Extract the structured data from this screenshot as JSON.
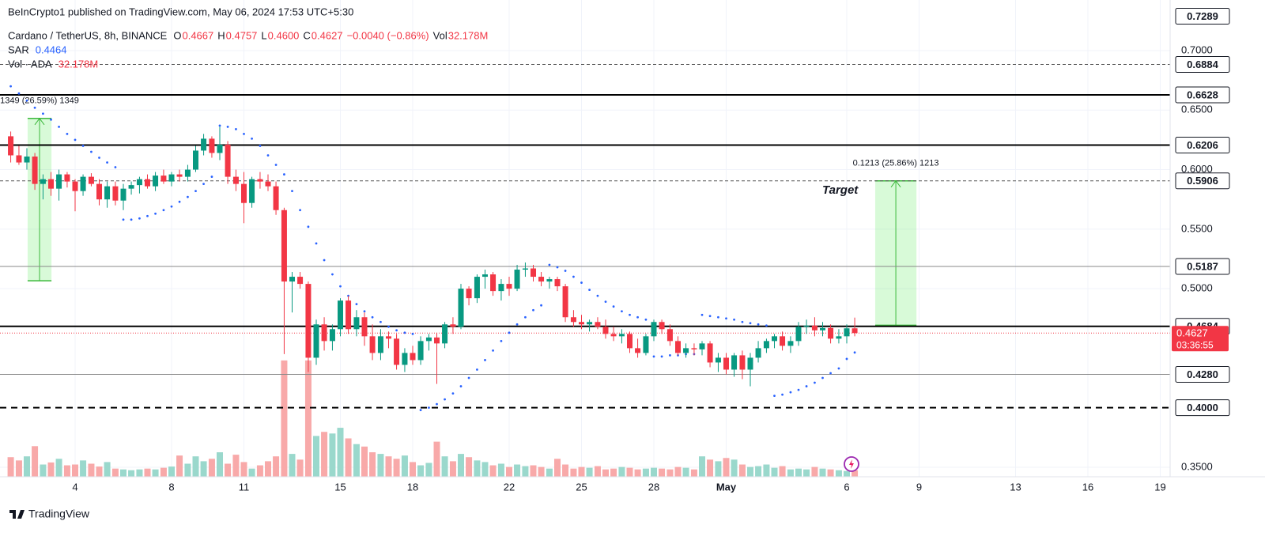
{
  "chart_data": {
    "type": "candlestick",
    "header": "BeInCrypto1 published on TradingView.com, May 06, 2024 17:53 UTC+5:30",
    "legend": {
      "symbol": "Cardano / TetherUS, 8h, BINANCE",
      "fields": [
        {
          "key": "O",
          "value": "0.4667"
        },
        {
          "key": "H",
          "value": "0.4757"
        },
        {
          "key": "L",
          "value": "0.4600"
        },
        {
          "key": "C",
          "value": "0.4627"
        }
      ],
      "change": "−0.0040 (−0.86%)",
      "vol_key": "Vol",
      "vol": "32.178M",
      "sar_key": "SAR",
      "sar": "0.4464",
      "volume_key": "Vol · ADA",
      "volume": "32.178M"
    },
    "footer": "TradingView",
    "up_color": "#089981",
    "down_color": "#f23645",
    "sar_color": "#2962ff",
    "xlim": [
      0.885,
      49.41
    ],
    "ylim": [
      0.342,
      0.7425
    ],
    "vlim": [
      0,
      620
    ],
    "grid": true,
    "xticks": [
      4,
      8,
      11,
      15,
      18,
      22,
      25,
      28,
      {
        "value": 31,
        "label": "May"
      },
      {
        "value": 36,
        "label": "6"
      },
      {
        "value": 39,
        "label": "9"
      },
      {
        "value": 43,
        "label": "13"
      },
      {
        "value": 46,
        "label": "16"
      },
      {
        "value": 49,
        "label": "19"
      }
    ],
    "yticks": [
      {
        "value": 0.35,
        "label": "0.3500"
      },
      {
        "value": 0.5,
        "label": "0.5000"
      },
      {
        "value": 0.55,
        "label": "0.5500"
      },
      {
        "value": 0.6,
        "label": "0.6000"
      },
      {
        "value": 0.65,
        "label": "0.6500"
      },
      {
        "value": 0.7,
        "label": "0.7000"
      }
    ],
    "levels": [
      {
        "value": 0.7289,
        "label": "0.7289",
        "line": "none",
        "color": "#131722"
      },
      {
        "value": 0.6884,
        "label": "0.6884",
        "line": "dashed",
        "color": "#555555"
      },
      {
        "value": 0.6628,
        "label": "0.6628",
        "line": "solid",
        "color": "#000000"
      },
      {
        "value": 0.6206,
        "label": "0.6206",
        "line": "solid",
        "color": "#000000"
      },
      {
        "value": 0.5906,
        "label": "0.5906",
        "line": "dashed",
        "color": "#555555"
      },
      {
        "value": 0.5187,
        "label": "0.5187",
        "line": "thin",
        "color": "#888888"
      },
      {
        "value": 0.4684,
        "label": "0.4684",
        "line": "solid",
        "color": "#000000"
      },
      {
        "value": 0.428,
        "label": "0.4280",
        "line": "thin",
        "color": "#888888"
      },
      {
        "value": 0.4,
        "label": "0.4000",
        "line": "heavy-dashed",
        "color": "#000000"
      }
    ],
    "current": {
      "value": 0.4627,
      "label": "0.4627",
      "countdown": "03:36:55"
    },
    "measures": [
      {
        "label": "1349 (26.59%) 1349",
        "x": [
          2.03,
          3.02
        ],
        "y": [
          0.5066,
          0.643
        ]
      },
      {
        "label": "0.1213 (25.86%) 1213",
        "x": [
          37.18,
          38.89
        ],
        "y": [
          0.4693,
          0.5906
        ]
      }
    ],
    "annotation": "Target",
    "x": [
      1.33,
      1.67,
      2,
      2.33,
      2.67,
      3,
      3.33,
      3.67,
      4,
      4.33,
      4.67,
      5,
      5.33,
      5.67,
      6,
      6.33,
      6.67,
      7,
      7.33,
      7.67,
      8,
      8.33,
      8.67,
      9,
      9.33,
      9.67,
      10,
      10.33,
      10.67,
      11,
      11.33,
      11.67,
      12,
      12.33,
      12.67,
      13,
      13.33,
      13.67,
      14,
      14.33,
      14.67,
      15,
      15.33,
      15.67,
      16,
      16.33,
      16.67,
      17,
      17.33,
      17.67,
      18,
      18.33,
      18.67,
      19,
      19.33,
      19.67,
      20,
      20.33,
      20.67,
      21,
      21.33,
      21.67,
      22,
      22.33,
      22.67,
      23,
      23.33,
      23.67,
      24,
      24.33,
      24.67,
      25,
      25.33,
      25.67,
      26,
      26.33,
      26.67,
      27,
      27.33,
      27.67,
      28,
      28.33,
      28.67,
      29,
      29.33,
      29.67,
      30,
      30.33,
      30.67,
      31,
      31.33,
      31.67,
      32,
      32.33,
      32.67,
      33,
      33.33,
      33.67,
      34,
      34.33,
      34.67,
      35,
      35.33,
      35.67,
      36,
      36.33
    ],
    "candles": [
      [
        0.628,
        0.632,
        0.606,
        0.612
      ],
      [
        0.612,
        0.62,
        0.604,
        0.606
      ],
      [
        0.606,
        0.618,
        0.6,
        0.611
      ],
      [
        0.611,
        0.614,
        0.583,
        0.588
      ],
      [
        0.588,
        0.596,
        0.575,
        0.592
      ],
      [
        0.592,
        0.598,
        0.578,
        0.584
      ],
      [
        0.584,
        0.6,
        0.574,
        0.596
      ],
      [
        0.596,
        0.598,
        0.585,
        0.59
      ],
      [
        0.59,
        0.592,
        0.565,
        0.582
      ],
      [
        0.582,
        0.596,
        0.578,
        0.594
      ],
      [
        0.594,
        0.597,
        0.586,
        0.588
      ],
      [
        0.588,
        0.592,
        0.57,
        0.575
      ],
      [
        0.575,
        0.59,
        0.568,
        0.586
      ],
      [
        0.586,
        0.59,
        0.57,
        0.574
      ],
      [
        0.574,
        0.588,
        0.566,
        0.584
      ],
      [
        0.584,
        0.59,
        0.579,
        0.587
      ],
      [
        0.587,
        0.594,
        0.58,
        0.592
      ],
      [
        0.592,
        0.596,
        0.584,
        0.586
      ],
      [
        0.586,
        0.598,
        0.582,
        0.595
      ],
      [
        0.595,
        0.6,
        0.588,
        0.59
      ],
      [
        0.59,
        0.598,
        0.586,
        0.596
      ],
      [
        0.596,
        0.6,
        0.59,
        0.594
      ],
      [
        0.594,
        0.604,
        0.59,
        0.6
      ],
      [
        0.6,
        0.62,
        0.598,
        0.616
      ],
      [
        0.616,
        0.63,
        0.612,
        0.626
      ],
      [
        0.626,
        0.628,
        0.61,
        0.614
      ],
      [
        0.614,
        0.636,
        0.608,
        0.621
      ],
      [
        0.621,
        0.624,
        0.588,
        0.594
      ],
      [
        0.594,
        0.6,
        0.582,
        0.588
      ],
      [
        0.588,
        0.598,
        0.555,
        0.572
      ],
      [
        0.572,
        0.594,
        0.568,
        0.592
      ],
      [
        0.592,
        0.598,
        0.584,
        0.59
      ],
      [
        0.59,
        0.596,
        0.582,
        0.586
      ],
      [
        0.586,
        0.59,
        0.562,
        0.566
      ],
      [
        0.566,
        0.568,
        0.445,
        0.506
      ],
      [
        0.506,
        0.514,
        0.48,
        0.51
      ],
      [
        0.51,
        0.514,
        0.5,
        0.504
      ],
      [
        0.504,
        0.506,
        0.43,
        0.442
      ],
      [
        0.442,
        0.474,
        0.436,
        0.47
      ],
      [
        0.47,
        0.476,
        0.448,
        0.456
      ],
      [
        0.456,
        0.47,
        0.448,
        0.466
      ],
      [
        0.466,
        0.492,
        0.46,
        0.49
      ],
      [
        0.49,
        0.494,
        0.462,
        0.466
      ],
      [
        0.466,
        0.482,
        0.46,
        0.476
      ],
      [
        0.476,
        0.48,
        0.452,
        0.46
      ],
      [
        0.46,
        0.47,
        0.44,
        0.446
      ],
      [
        0.446,
        0.466,
        0.44,
        0.46
      ],
      [
        0.46,
        0.464,
        0.45,
        0.458
      ],
      [
        0.458,
        0.462,
        0.432,
        0.436
      ],
      [
        0.436,
        0.45,
        0.43,
        0.446
      ],
      [
        0.446,
        0.452,
        0.436,
        0.44
      ],
      [
        0.44,
        0.46,
        0.436,
        0.456
      ],
      [
        0.456,
        0.462,
        0.448,
        0.459
      ],
      [
        0.459,
        0.463,
        0.42,
        0.454
      ],
      [
        0.454,
        0.472,
        0.45,
        0.47
      ],
      [
        0.47,
        0.476,
        0.462,
        0.468
      ],
      [
        0.468,
        0.504,
        0.466,
        0.5
      ],
      [
        0.5,
        0.502,
        0.486,
        0.492
      ],
      [
        0.492,
        0.512,
        0.488,
        0.51
      ],
      [
        0.51,
        0.516,
        0.5,
        0.512
      ],
      [
        0.512,
        0.514,
        0.494,
        0.498
      ],
      [
        0.498,
        0.508,
        0.49,
        0.504
      ],
      [
        0.504,
        0.51,
        0.494,
        0.5
      ],
      [
        0.5,
        0.52,
        0.498,
        0.516
      ],
      [
        0.516,
        0.522,
        0.51,
        0.517
      ],
      [
        0.517,
        0.52,
        0.506,
        0.51
      ],
      [
        0.51,
        0.514,
        0.502,
        0.506
      ],
      [
        0.506,
        0.51,
        0.5,
        0.508
      ],
      [
        0.508,
        0.51,
        0.498,
        0.502
      ],
      [
        0.502,
        0.504,
        0.472,
        0.476
      ],
      [
        0.476,
        0.482,
        0.468,
        0.472
      ],
      [
        0.472,
        0.478,
        0.466,
        0.47
      ],
      [
        0.47,
        0.474,
        0.464,
        0.472
      ],
      [
        0.472,
        0.476,
        0.466,
        0.468
      ],
      [
        0.468,
        0.474,
        0.458,
        0.462
      ],
      [
        0.462,
        0.468,
        0.456,
        0.46
      ],
      [
        0.46,
        0.466,
        0.454,
        0.462
      ],
      [
        0.462,
        0.464,
        0.446,
        0.45
      ],
      [
        0.45,
        0.458,
        0.442,
        0.446
      ],
      [
        0.446,
        0.462,
        0.444,
        0.46
      ],
      [
        0.46,
        0.474,
        0.456,
        0.472
      ],
      [
        0.472,
        0.474,
        0.462,
        0.466
      ],
      [
        0.466,
        0.47,
        0.452,
        0.456
      ],
      [
        0.456,
        0.46,
        0.444,
        0.446
      ],
      [
        0.446,
        0.454,
        0.442,
        0.45
      ],
      [
        0.45,
        0.454,
        0.444,
        0.449
      ],
      [
        0.449,
        0.456,
        0.444,
        0.454
      ],
      [
        0.454,
        0.456,
        0.434,
        0.438
      ],
      [
        0.438,
        0.446,
        0.43,
        0.442
      ],
      [
        0.442,
        0.446,
        0.428,
        0.432
      ],
      [
        0.432,
        0.446,
        0.426,
        0.444
      ],
      [
        0.444,
        0.448,
        0.424,
        0.432
      ],
      [
        0.432,
        0.446,
        0.418,
        0.442
      ],
      [
        0.442,
        0.456,
        0.438,
        0.45
      ],
      [
        0.45,
        0.458,
        0.446,
        0.456
      ],
      [
        0.456,
        0.462,
        0.45,
        0.46
      ],
      [
        0.46,
        0.464,
        0.448,
        0.452
      ],
      [
        0.452,
        0.46,
        0.446,
        0.456
      ],
      [
        0.456,
        0.472,
        0.452,
        0.468
      ],
      [
        0.468,
        0.474,
        0.462,
        0.469
      ],
      [
        0.469,
        0.476,
        0.46,
        0.465
      ],
      [
        0.465,
        0.472,
        0.46,
        0.467
      ],
      [
        0.467,
        0.47,
        0.454,
        0.458
      ],
      [
        0.458,
        0.466,
        0.454,
        0.46
      ],
      [
        0.46,
        0.47,
        0.454,
        0.4667
      ],
      [
        0.4667,
        0.4757,
        0.46,
        0.4627
      ]
    ],
    "sar": [
      0.67,
      0.664,
      0.658,
      0.652,
      0.647,
      0.642,
      0.636,
      0.63,
      0.625,
      0.62,
      0.615,
      0.61,
      0.606,
      0.602,
      0.558,
      0.558,
      0.559,
      0.561,
      0.563,
      0.566,
      0.569,
      0.573,
      0.577,
      0.582,
      0.588,
      0.594,
      0.637,
      0.636,
      0.634,
      0.63,
      0.626,
      0.62,
      0.612,
      0.604,
      0.596,
      0.582,
      0.566,
      0.552,
      0.538,
      0.524,
      0.512,
      0.502,
      0.494,
      0.487,
      0.481,
      0.476,
      0.472,
      0.468,
      0.465,
      0.463,
      0.462,
      0.398,
      0.4,
      0.403,
      0.407,
      0.412,
      0.418,
      0.425,
      0.432,
      0.44,
      0.448,
      0.456,
      0.463,
      0.47,
      0.476,
      0.482,
      0.486,
      0.52,
      0.518,
      0.515,
      0.51,
      0.505,
      0.499,
      0.494,
      0.489,
      0.485,
      0.481,
      0.478,
      0.476,
      0.474,
      0.443,
      0.443,
      0.444,
      0.444,
      0.445,
      0.445,
      0.478,
      0.477,
      0.476,
      0.475,
      0.474,
      0.472,
      0.471,
      0.47,
      0.469,
      0.41,
      0.411,
      0.413,
      0.415,
      0.418,
      0.421,
      0.425,
      0.429,
      0.433,
      0.441,
      0.4464
    ],
    "volume": [
      96,
      80,
      100,
      150,
      60,
      70,
      88,
      56,
      60,
      80,
      64,
      50,
      72,
      40,
      36,
      32,
      36,
      40,
      36,
      44,
      50,
      104,
      64,
      100,
      76,
      88,
      120,
      64,
      108,
      72,
      40,
      56,
      76,
      100,
      570,
      112,
      84,
      570,
      200,
      220,
      212,
      240,
      188,
      160,
      148,
      120,
      112,
      100,
      88,
      104,
      72,
      56,
      68,
      172,
      100,
      76,
      112,
      96,
      80,
      72,
      56,
      64,
      48,
      60,
      52,
      56,
      48,
      40,
      88,
      60,
      40,
      48,
      44,
      52,
      36,
      40,
      48,
      44,
      36,
      40,
      44,
      40,
      36,
      48,
      44,
      36,
      100,
      84,
      76,
      92,
      84,
      60,
      48,
      52,
      60,
      44,
      52,
      36,
      40,
      36,
      48,
      40,
      36,
      32,
      28,
      32.178
    ]
  }
}
